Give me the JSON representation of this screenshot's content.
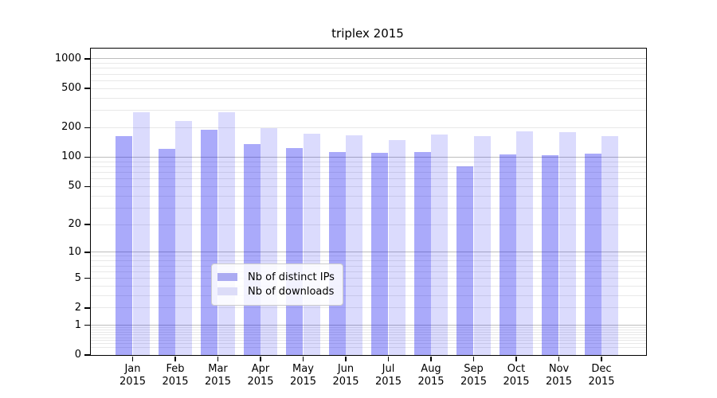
{
  "title": "triplex 2015",
  "chart_data": {
    "type": "bar",
    "title": "triplex 2015",
    "xlabel": "",
    "ylabel": "",
    "categories": [
      "Jan 2015",
      "Feb 2015",
      "Mar 2015",
      "Apr 2015",
      "May 2015",
      "Jun 2015",
      "Jul 2015",
      "Aug 2015",
      "Sep 2015",
      "Oct 2015",
      "Nov 2015",
      "Dec 2015"
    ],
    "x_months": [
      "Jan",
      "Feb",
      "Mar",
      "Apr",
      "May",
      "Jun",
      "Jul",
      "Aug",
      "Sep",
      "Oct",
      "Nov",
      "Dec"
    ],
    "x_year": "2015",
    "series": [
      {
        "name": "Nb of distinct IPs",
        "color": "#ABABF2",
        "fill": "rgba(11,11,240,0.35)",
        "values": [
          163,
          122,
          189,
          136,
          123,
          113,
          110,
          114,
          81,
          106,
          104,
          108
        ]
      },
      {
        "name": "Nb of downloads",
        "color": "#DCDCF8",
        "fill": "rgba(11,11,240,0.15)",
        "values": [
          290,
          236,
          287,
          199,
          175,
          167,
          151,
          169,
          163,
          185,
          180,
          165
        ]
      }
    ],
    "yscale": "log1p",
    "ylim": [
      0,
      1272
    ],
    "yticks": [
      0,
      1,
      2,
      5,
      10,
      20,
      50,
      100,
      200,
      500,
      1000
    ],
    "grid": {
      "on": true,
      "major": [
        1,
        10,
        100,
        1000
      ],
      "minor_decades": [
        0.1,
        1,
        10,
        100
      ],
      "minor_multipliers": [
        2,
        3,
        4,
        5,
        6,
        7,
        8,
        9
      ],
      "major_color": "#bdbdbd",
      "minor_color": "#e8e8e8"
    },
    "legend": {
      "position": "inside-bottom-center",
      "labels": [
        "Nb of distinct IPs",
        "Nb of downloads"
      ]
    },
    "frame_color": "#000000",
    "background_color": "#ffffff"
  }
}
